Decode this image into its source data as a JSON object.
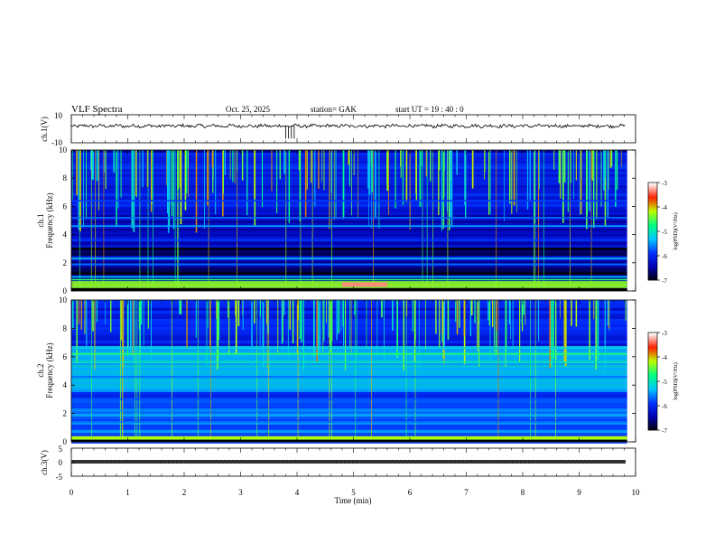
{
  "header": {
    "title": "VLF  Spectra",
    "date": "Oct. 25, 2025",
    "station": "station= GAK",
    "start": "start  UT  =    19 : 40 : 0"
  },
  "chart_data": [
    {
      "type": "line",
      "id": "ch1-waveform",
      "ylabel": "ch.1(V)",
      "ylim": [
        -10,
        10
      ],
      "yticks": [
        "10",
        "-10"
      ],
      "xlim": [
        0,
        10
      ],
      "baseline": 2,
      "line_color": "#000000"
    },
    {
      "type": "heatmap",
      "id": "ch1-spectrogram",
      "ylabel": "ch.1\nFrequency  (kHz)",
      "ylabel_lines": [
        "ch.1",
        "Frequency  (kHz)"
      ],
      "ylim": [
        0,
        10
      ],
      "yticks": [
        "0",
        "2",
        "4",
        "6",
        "8",
        "10"
      ],
      "xlim": [
        0,
        9.85
      ],
      "colorbar": {
        "label": "log(PSD)(V²/Hz)",
        "ticks": [
          "-3",
          "-4",
          "-5",
          "-6",
          "-7"
        ],
        "range": [
          -7,
          -3
        ]
      },
      "dominant_bands_khz": [
        {
          "f": 0.4,
          "level": -3.6
        },
        {
          "f": 0.8,
          "level": -4.6
        },
        {
          "f": 1.0,
          "level": -5.2
        },
        {
          "f": 1.9,
          "level": -5.6
        },
        {
          "f": 2.3,
          "level": -5.2
        },
        {
          "f": 3.6,
          "level": -5.8
        },
        {
          "f": 4.6,
          "level": -5.4
        },
        {
          "f": 5.2,
          "level": -5.6
        },
        {
          "f": 6.4,
          "level": -5.8
        }
      ]
    },
    {
      "type": "heatmap",
      "id": "ch2-spectrogram",
      "ylabel": "ch.2\nFrequency  (kHz)",
      "ylabel_lines": [
        "ch.2",
        "Frequency  (kHz)"
      ],
      "ylim": [
        0,
        10
      ],
      "yticks": [
        "0",
        "2",
        "4",
        "6",
        "8",
        "10"
      ],
      "xlim": [
        0,
        9.85
      ],
      "colorbar": {
        "label": "log(PSD)(V²/Hz)",
        "ticks": [
          "-3",
          "-4",
          "-5",
          "-6",
          "-7"
        ],
        "range": [
          -7,
          -3
        ]
      },
      "dominant_bands_khz": [
        {
          "f": 0.3,
          "level": -4.0
        },
        {
          "f": 1.4,
          "level": -5.6
        },
        {
          "f": 2.2,
          "level": -5.5
        },
        {
          "f": 3.0,
          "level": -5.7
        },
        {
          "f": 4.6,
          "level": -5.6
        },
        {
          "f": 5.6,
          "level": -5.0
        },
        {
          "f": 6.2,
          "level": -4.6
        },
        {
          "f": 6.6,
          "level": -5.2
        }
      ]
    },
    {
      "type": "line",
      "id": "ch3-waveform",
      "ylabel": "ch.3(V)",
      "ylim": [
        -5,
        5
      ],
      "yticks": [
        "5",
        "0",
        "-5"
      ],
      "xlim": [
        0,
        10
      ],
      "baseline": -1.8,
      "line_color": "#000000"
    }
  ],
  "xaxis": {
    "label": "Time  (min)",
    "ticks": [
      "0",
      "1",
      "2",
      "3",
      "4",
      "5",
      "6",
      "7",
      "8",
      "9",
      "10"
    ],
    "range": [
      0,
      10
    ]
  },
  "colors": {
    "colormap": [
      "#000000",
      "#0000b0",
      "#0030ff",
      "#00c8ff",
      "#00ff80",
      "#c0ff00",
      "#ff2000",
      "#ffffff"
    ]
  }
}
